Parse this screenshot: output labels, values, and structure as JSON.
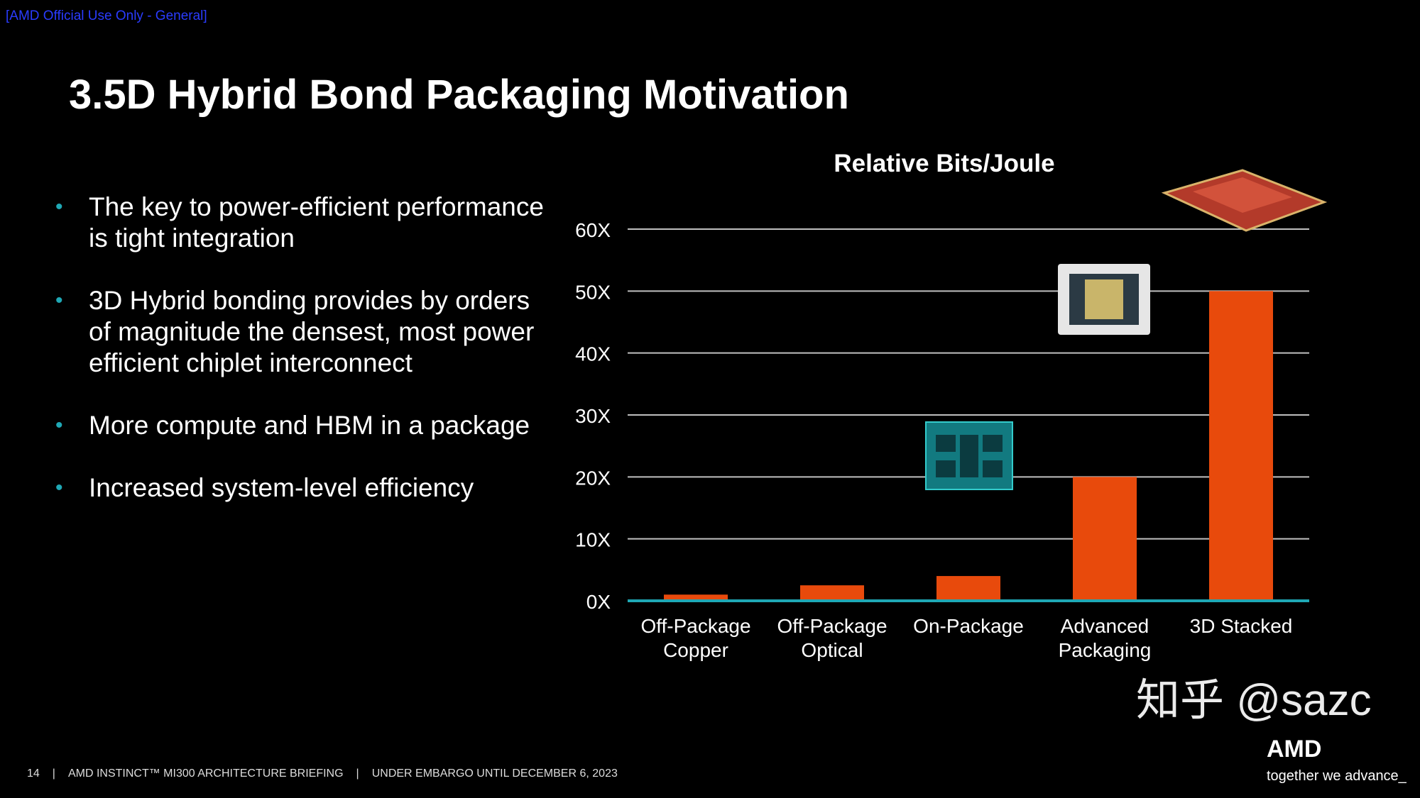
{
  "classification": "[AMD Official Use Only - General]",
  "title": "3.5D Hybrid Bond Packaging Motivation",
  "bullets": [
    "The key to power-efficient performance is tight integration",
    "3D Hybrid bonding provides by orders of magnitude the densest, most power efficient chiplet interconnect",
    "More compute and HBM in a package",
    "Increased system-level efficiency"
  ],
  "footer": {
    "page_number": "14",
    "text": "AMD INSTINCT™ MI300 ARCHITECTURE BRIEFING",
    "embargo": "UNDER EMBARGO UNTIL DECEMBER 6, 2023"
  },
  "logo": {
    "brand": "AMD",
    "tagline": "together we advance_"
  },
  "watermark": "知乎 @sazc",
  "colors": {
    "bar": "#e84a0c",
    "axis": "#1fa8b5",
    "grid": "#bfbfbf",
    "bullet": "#1fa8b5",
    "classification": "#2a3cff"
  },
  "chart_data": {
    "type": "bar",
    "title": "Relative Bits/Joule",
    "categories": [
      [
        "Off-Package",
        "Copper"
      ],
      [
        "Off-Package",
        "Optical"
      ],
      [
        "On-Package"
      ],
      [
        "Advanced",
        "Packaging"
      ],
      [
        "3D Stacked"
      ]
    ],
    "values": [
      1,
      2.5,
      4,
      20,
      50
    ],
    "ylim": [
      0,
      60
    ],
    "yticks": [
      "0X",
      "10X",
      "20X",
      "30X",
      "40X",
      "50X",
      "60X"
    ],
    "grid": true,
    "category_images": [
      "",
      "",
      "chip-package-icon",
      "chip-package-icon",
      "stacked-chip-icon"
    ]
  }
}
